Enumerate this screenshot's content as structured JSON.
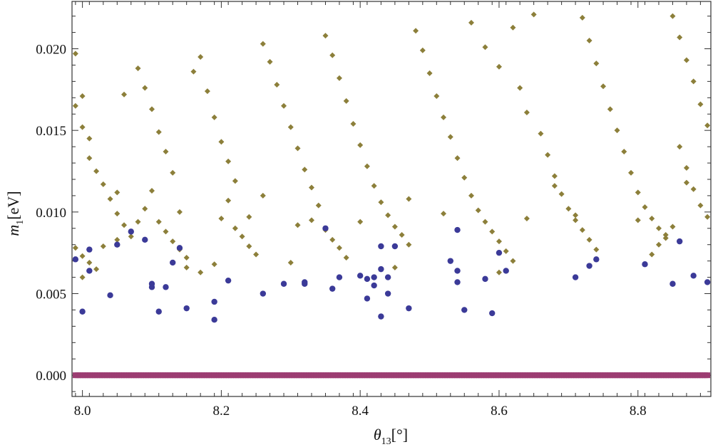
{
  "chart_data": {
    "type": "scatter",
    "title": "",
    "xlabel": {
      "symbol": "θ",
      "sub": "13",
      "unit": "[°]"
    },
    "ylabel": {
      "symbol": "m",
      "sub": "1",
      "unit": "[eV]"
    },
    "xlim": [
      7.985,
      8.905
    ],
    "ylim": [
      -0.0013,
      0.0229
    ],
    "xticks": [
      8.0,
      8.2,
      8.4,
      8.6,
      8.8
    ],
    "xtick_labels": [
      "8.0",
      "8.2",
      "8.4",
      "8.6",
      "8.8"
    ],
    "yticks": [
      0.0,
      0.005,
      0.01,
      0.015,
      0.02
    ],
    "ytick_labels": [
      "0.000",
      "0.005",
      "0.010",
      "0.015",
      "0.020"
    ],
    "grid": false,
    "legend": "none",
    "frame": "box",
    "series": [
      {
        "marker": "diamond",
        "color": "#8C7F3A",
        "description_points": "dense band spanning x 8.0–8.9, y mostly 0.006–0.022",
        "points": [
          [
            7.99,
            0.0197
          ],
          [
            7.99,
            0.0165
          ],
          [
            8.0,
            0.0171
          ],
          [
            8.0,
            0.0152
          ],
          [
            8.01,
            0.0145
          ],
          [
            8.01,
            0.0133
          ],
          [
            8.02,
            0.0125
          ],
          [
            8.03,
            0.0117
          ],
          [
            8.04,
            0.0108
          ],
          [
            8.05,
            0.0099
          ],
          [
            8.06,
            0.0092
          ],
          [
            8.07,
            0.0085
          ],
          [
            7.99,
            0.0078
          ],
          [
            8.0,
            0.0073
          ],
          [
            8.01,
            0.0069
          ],
          [
            8.02,
            0.0065
          ],
          [
            8.0,
            0.006
          ],
          [
            8.03,
            0.0079
          ],
          [
            8.05,
            0.0083
          ],
          [
            8.06,
            0.0172
          ],
          [
            8.08,
            0.0188
          ],
          [
            8.09,
            0.0176
          ],
          [
            8.1,
            0.0163
          ],
          [
            8.11,
            0.0149
          ],
          [
            8.12,
            0.0137
          ],
          [
            8.13,
            0.0124
          ],
          [
            8.1,
            0.0113
          ],
          [
            8.09,
            0.0102
          ],
          [
            8.11,
            0.0094
          ],
          [
            8.12,
            0.0088
          ],
          [
            8.13,
            0.0082
          ],
          [
            8.14,
            0.0077
          ],
          [
            8.15,
            0.0072
          ],
          [
            8.16,
            0.0186
          ],
          [
            8.17,
            0.0195
          ],
          [
            8.18,
            0.0174
          ],
          [
            8.19,
            0.0158
          ],
          [
            8.2,
            0.0143
          ],
          [
            8.21,
            0.0131
          ],
          [
            8.22,
            0.0119
          ],
          [
            8.21,
            0.0107
          ],
          [
            8.2,
            0.0096
          ],
          [
            8.22,
            0.009
          ],
          [
            8.23,
            0.0085
          ],
          [
            8.24,
            0.0079
          ],
          [
            8.25,
            0.0074
          ],
          [
            8.19,
            0.0068
          ],
          [
            8.17,
            0.0063
          ],
          [
            8.26,
            0.0203
          ],
          [
            8.27,
            0.0192
          ],
          [
            8.28,
            0.0178
          ],
          [
            8.29,
            0.0165
          ],
          [
            8.3,
            0.0152
          ],
          [
            8.31,
            0.0139
          ],
          [
            8.32,
            0.0126
          ],
          [
            8.33,
            0.0115
          ],
          [
            8.34,
            0.0104
          ],
          [
            8.33,
            0.0095
          ],
          [
            8.35,
            0.0089
          ],
          [
            8.36,
            0.0083
          ],
          [
            8.37,
            0.0078
          ],
          [
            8.38,
            0.0072
          ],
          [
            8.35,
            0.0208
          ],
          [
            8.36,
            0.0196
          ],
          [
            8.37,
            0.0182
          ],
          [
            8.38,
            0.0168
          ],
          [
            8.39,
            0.0154
          ],
          [
            8.4,
            0.0141
          ],
          [
            8.41,
            0.0128
          ],
          [
            8.42,
            0.0116
          ],
          [
            8.43,
            0.0106
          ],
          [
            8.44,
            0.0098
          ],
          [
            8.45,
            0.0091
          ],
          [
            8.46,
            0.0086
          ],
          [
            8.47,
            0.008
          ],
          [
            8.48,
            0.0211
          ],
          [
            8.49,
            0.0199
          ],
          [
            8.5,
            0.0185
          ],
          [
            8.51,
            0.0171
          ],
          [
            8.52,
            0.0158
          ],
          [
            8.53,
            0.0146
          ],
          [
            8.54,
            0.0133
          ],
          [
            8.55,
            0.0121
          ],
          [
            8.56,
            0.011
          ],
          [
            8.57,
            0.0101
          ],
          [
            8.58,
            0.0094
          ],
          [
            8.59,
            0.0088
          ],
          [
            8.6,
            0.0082
          ],
          [
            8.61,
            0.0076
          ],
          [
            8.62,
            0.007
          ],
          [
            8.56,
            0.0216
          ],
          [
            8.58,
            0.0201
          ],
          [
            8.6,
            0.0189
          ],
          [
            8.62,
            0.0213
          ],
          [
            8.63,
            0.0176
          ],
          [
            8.64,
            0.0161
          ],
          [
            8.65,
            0.0221
          ],
          [
            8.66,
            0.0148
          ],
          [
            8.67,
            0.0135
          ],
          [
            8.68,
            0.0122
          ],
          [
            8.69,
            0.0111
          ],
          [
            8.7,
            0.0102
          ],
          [
            8.71,
            0.0095
          ],
          [
            8.72,
            0.0089
          ],
          [
            8.73,
            0.0083
          ],
          [
            8.74,
            0.0077
          ],
          [
            8.72,
            0.0219
          ],
          [
            8.73,
            0.0205
          ],
          [
            8.74,
            0.0191
          ],
          [
            8.75,
            0.0177
          ],
          [
            8.76,
            0.0163
          ],
          [
            8.77,
            0.015
          ],
          [
            8.78,
            0.0137
          ],
          [
            8.79,
            0.0124
          ],
          [
            8.8,
            0.0112
          ],
          [
            8.81,
            0.0103
          ],
          [
            8.82,
            0.0096
          ],
          [
            8.83,
            0.009
          ],
          [
            8.84,
            0.0084
          ],
          [
            8.85,
            0.022
          ],
          [
            8.86,
            0.0207
          ],
          [
            8.87,
            0.0193
          ],
          [
            8.88,
            0.018
          ],
          [
            8.89,
            0.0166
          ],
          [
            8.9,
            0.0153
          ],
          [
            8.86,
            0.014
          ],
          [
            8.87,
            0.0127
          ],
          [
            8.88,
            0.0114
          ],
          [
            8.89,
            0.0104
          ],
          [
            8.9,
            0.0097
          ],
          [
            8.85,
            0.0091
          ],
          [
            8.84,
            0.0086
          ],
          [
            8.83,
            0.008
          ],
          [
            8.82,
            0.0074
          ],
          [
            8.6,
            0.0063
          ],
          [
            8.45,
            0.0066
          ],
          [
            8.3,
            0.0069
          ],
          [
            8.15,
            0.0066
          ],
          [
            8.08,
            0.0094
          ],
          [
            8.14,
            0.01
          ],
          [
            8.24,
            0.0097
          ],
          [
            8.31,
            0.0092
          ],
          [
            8.4,
            0.0094
          ],
          [
            8.52,
            0.0099
          ],
          [
            8.64,
            0.0096
          ],
          [
            8.71,
            0.0098
          ],
          [
            8.8,
            0.0095
          ],
          [
            8.05,
            0.0112
          ],
          [
            8.26,
            0.011
          ],
          [
            8.47,
            0.0108
          ],
          [
            8.68,
            0.0116
          ],
          [
            8.87,
            0.0118
          ]
        ]
      },
      {
        "marker": "circle",
        "color": "#3B3A98",
        "points": [
          [
            7.99,
            0.0071
          ],
          [
            8.01,
            0.0077
          ],
          [
            8.0,
            0.0039
          ],
          [
            8.01,
            0.0064
          ],
          [
            8.04,
            0.0049
          ],
          [
            8.05,
            0.008
          ],
          [
            8.07,
            0.0088
          ],
          [
            8.09,
            0.0083
          ],
          [
            8.1,
            0.0054
          ],
          [
            8.1,
            0.0056
          ],
          [
            8.11,
            0.0039
          ],
          [
            8.12,
            0.0054
          ],
          [
            8.13,
            0.0069
          ],
          [
            8.14,
            0.0078
          ],
          [
            8.15,
            0.0041
          ],
          [
            8.19,
            0.0045
          ],
          [
            8.19,
            0.0034
          ],
          [
            8.21,
            0.0058
          ],
          [
            8.26,
            0.005
          ],
          [
            8.29,
            0.0056
          ],
          [
            8.32,
            0.0057
          ],
          [
            8.32,
            0.0056
          ],
          [
            8.35,
            0.009
          ],
          [
            8.36,
            0.0053
          ],
          [
            8.37,
            0.006
          ],
          [
            8.4,
            0.0061
          ],
          [
            8.41,
            0.0047
          ],
          [
            8.41,
            0.0059
          ],
          [
            8.42,
            0.0055
          ],
          [
            8.42,
            0.006
          ],
          [
            8.43,
            0.0065
          ],
          [
            8.43,
            0.0036
          ],
          [
            8.43,
            0.0079
          ],
          [
            8.44,
            0.005
          ],
          [
            8.44,
            0.006
          ],
          [
            8.45,
            0.0079
          ],
          [
            8.47,
            0.0041
          ],
          [
            8.53,
            0.007
          ],
          [
            8.54,
            0.0089
          ],
          [
            8.54,
            0.0057
          ],
          [
            8.54,
            0.0064
          ],
          [
            8.55,
            0.004
          ],
          [
            8.58,
            0.0059
          ],
          [
            8.59,
            0.0038
          ],
          [
            8.6,
            0.0075
          ],
          [
            8.61,
            0.0064
          ],
          [
            8.71,
            0.006
          ],
          [
            8.73,
            0.0067
          ],
          [
            8.74,
            0.0071
          ],
          [
            8.81,
            0.0068
          ],
          [
            8.85,
            0.0056
          ],
          [
            8.86,
            0.0082
          ],
          [
            8.88,
            0.0061
          ],
          [
            8.9,
            0.0057
          ]
        ]
      },
      {
        "marker": "square",
        "color": "#9C3D72",
        "description_points": "continuous band of overlapping markers at y = 0 spanning x 7.99–8.90",
        "points_range_x": [
          7.99,
          8.9
        ],
        "points_y": 0.0
      }
    ]
  }
}
